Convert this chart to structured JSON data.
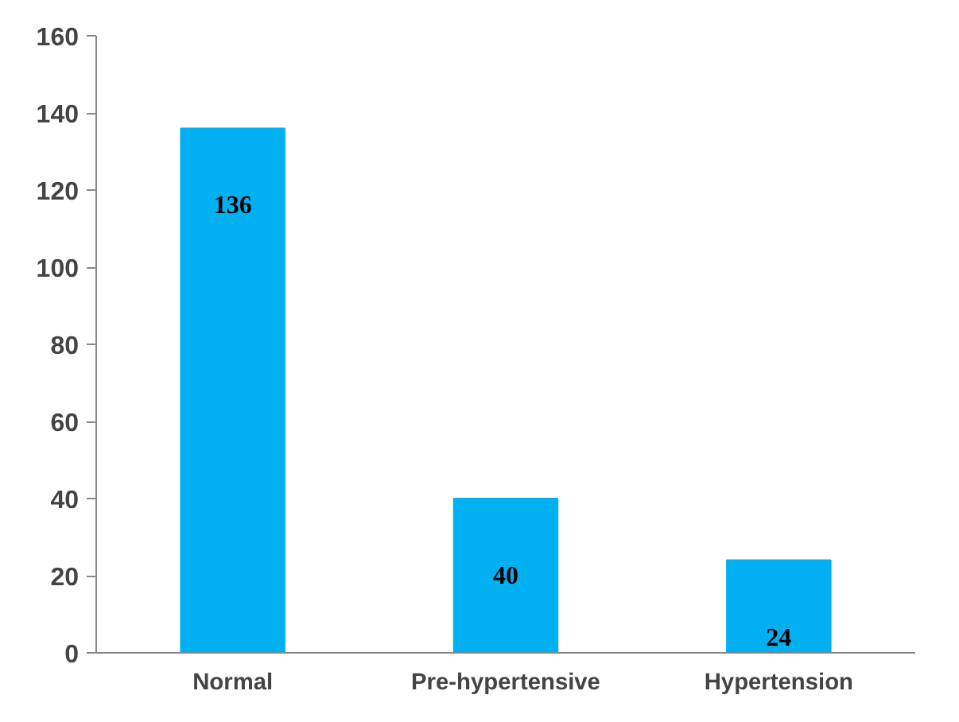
{
  "chart_data": {
    "type": "bar",
    "categories": [
      "Normal",
      "Pre-hypertensive",
      "Hypertension"
    ],
    "values": [
      136,
      40,
      24
    ],
    "color": "#00b0f0",
    "ylim": [
      0,
      160
    ],
    "yticks": [
      0,
      20,
      40,
      60,
      80,
      100,
      120,
      140,
      160
    ],
    "data_labels": true
  }
}
